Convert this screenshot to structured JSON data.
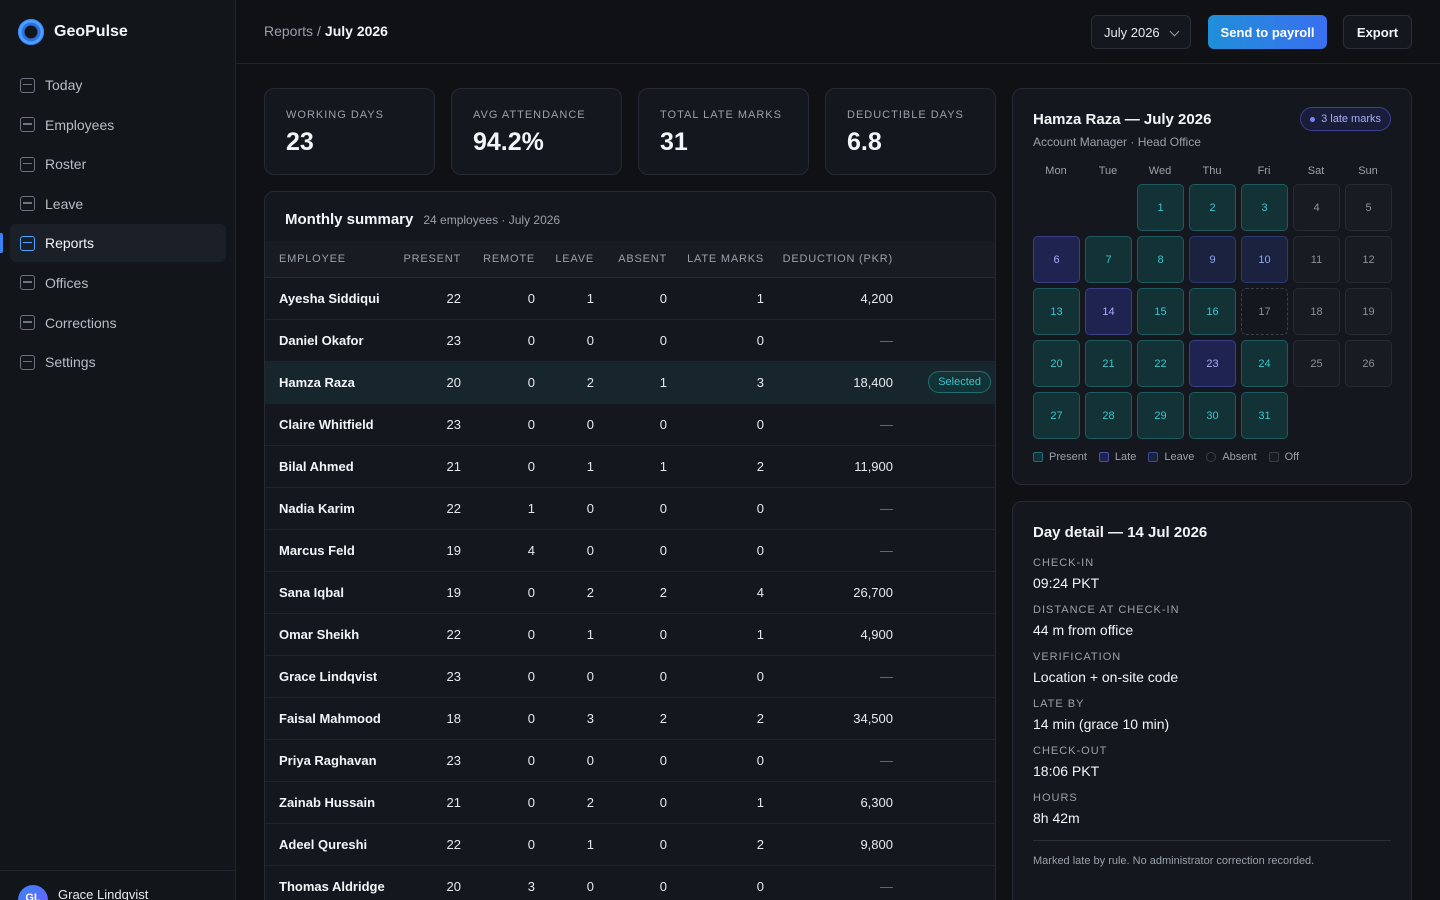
{
  "brand": {
    "name": "GeoPulse"
  },
  "nav": [
    {
      "label": "Today",
      "active": false
    },
    {
      "label": "Employees",
      "active": false
    },
    {
      "label": "Roster",
      "active": false
    },
    {
      "label": "Leave",
      "active": false
    },
    {
      "label": "Reports",
      "active": true
    },
    {
      "label": "Offices",
      "active": false
    },
    {
      "label": "Corrections",
      "active": false
    },
    {
      "label": "Settings",
      "active": false
    }
  ],
  "user": {
    "initials": "GL",
    "name": "Grace Lindqvist"
  },
  "breadcrumb": {
    "parent": "Reports",
    "separator": "/",
    "current": "July 2026"
  },
  "toolbar": {
    "month": "July 2026",
    "send_label": "Send to payroll",
    "export_label": "Export"
  },
  "stats": [
    {
      "label": "Working days",
      "value": "23"
    },
    {
      "label": "Avg attendance",
      "value": "94.2%"
    },
    {
      "label": "Total late marks",
      "value": "31"
    },
    {
      "label": "Deductible days",
      "value": "6.8"
    }
  ],
  "summary": {
    "title": "Monthly summary",
    "subtitle": "24 employees · July 2026",
    "columns": [
      "Employee",
      "Present",
      "Remote",
      "Leave",
      "Absent",
      "Late marks",
      "Deduction (PKR)"
    ],
    "selected_label": "Selected",
    "rows": [
      {
        "name": "Ayesha Siddiqui",
        "present": "22",
        "remote": "0",
        "leave": "1",
        "absent": "0",
        "late": "1",
        "deduction": "4,200",
        "selected": false
      },
      {
        "name": "Daniel Okafor",
        "present": "23",
        "remote": "0",
        "leave": "0",
        "absent": "0",
        "late": "0",
        "deduction": "—",
        "selected": false
      },
      {
        "name": "Hamza Raza",
        "present": "20",
        "remote": "0",
        "leave": "2",
        "absent": "1",
        "late": "3",
        "deduction": "18,400",
        "selected": true
      },
      {
        "name": "Claire Whitfield",
        "present": "23",
        "remote": "0",
        "leave": "0",
        "absent": "0",
        "late": "0",
        "deduction": "—",
        "selected": false
      },
      {
        "name": "Bilal Ahmed",
        "present": "21",
        "remote": "0",
        "leave": "1",
        "absent": "1",
        "late": "2",
        "deduction": "11,900",
        "selected": false
      },
      {
        "name": "Nadia Karim",
        "present": "22",
        "remote": "1",
        "leave": "0",
        "absent": "0",
        "late": "0",
        "deduction": "—",
        "selected": false
      },
      {
        "name": "Marcus Feld",
        "present": "19",
        "remote": "4",
        "leave": "0",
        "absent": "0",
        "late": "0",
        "deduction": "—",
        "selected": false
      },
      {
        "name": "Sana Iqbal",
        "present": "19",
        "remote": "0",
        "leave": "2",
        "absent": "2",
        "late": "4",
        "deduction": "26,700",
        "selected": false
      },
      {
        "name": "Omar Sheikh",
        "present": "22",
        "remote": "0",
        "leave": "1",
        "absent": "0",
        "late": "1",
        "deduction": "4,900",
        "selected": false
      },
      {
        "name": "Grace Lindqvist",
        "present": "23",
        "remote": "0",
        "leave": "0",
        "absent": "0",
        "late": "0",
        "deduction": "—",
        "selected": false
      },
      {
        "name": "Faisal Mahmood",
        "present": "18",
        "remote": "0",
        "leave": "3",
        "absent": "2",
        "late": "2",
        "deduction": "34,500",
        "selected": false
      },
      {
        "name": "Priya Raghavan",
        "present": "23",
        "remote": "0",
        "leave": "0",
        "absent": "0",
        "late": "0",
        "deduction": "—",
        "selected": false
      },
      {
        "name": "Zainab Hussain",
        "present": "21",
        "remote": "0",
        "leave": "2",
        "absent": "0",
        "late": "1",
        "deduction": "6,300",
        "selected": false
      },
      {
        "name": "Adeel Qureshi",
        "present": "22",
        "remote": "0",
        "leave": "1",
        "absent": "0",
        "late": "2",
        "deduction": "9,800",
        "selected": false
      },
      {
        "name": "Thomas Aldridge",
        "present": "20",
        "remote": "3",
        "leave": "0",
        "absent": "0",
        "late": "0",
        "deduction": "—",
        "selected": false
      }
    ]
  },
  "calendar": {
    "title": "Hamza Raza — July 2026",
    "subtitle": "Account Manager · Head Office",
    "late_badge": "3 late marks",
    "weekdays": [
      "Mon",
      "Tue",
      "Wed",
      "Thu",
      "Fri",
      "Sat",
      "Sun"
    ],
    "first_weekday_offset": 2,
    "days": [
      {
        "d": "1",
        "s": "present"
      },
      {
        "d": "2",
        "s": "present"
      },
      {
        "d": "3",
        "s": "present"
      },
      {
        "d": "4",
        "s": "off"
      },
      {
        "d": "5",
        "s": "off"
      },
      {
        "d": "6",
        "s": "late"
      },
      {
        "d": "7",
        "s": "present"
      },
      {
        "d": "8",
        "s": "present"
      },
      {
        "d": "9",
        "s": "leave"
      },
      {
        "d": "10",
        "s": "leave"
      },
      {
        "d": "11",
        "s": "off"
      },
      {
        "d": "12",
        "s": "off"
      },
      {
        "d": "13",
        "s": "present"
      },
      {
        "d": "14",
        "s": "late"
      },
      {
        "d": "15",
        "s": "present"
      },
      {
        "d": "16",
        "s": "present"
      },
      {
        "d": "17",
        "s": "future"
      },
      {
        "d": "18",
        "s": "off"
      },
      {
        "d": "19",
        "s": "off"
      },
      {
        "d": "20",
        "s": "present"
      },
      {
        "d": "21",
        "s": "present"
      },
      {
        "d": "22",
        "s": "present"
      },
      {
        "d": "23",
        "s": "late"
      },
      {
        "d": "24",
        "s": "present"
      },
      {
        "d": "25",
        "s": "off"
      },
      {
        "d": "26",
        "s": "off"
      },
      {
        "d": "27",
        "s": "present"
      },
      {
        "d": "28",
        "s": "present"
      },
      {
        "d": "29",
        "s": "present"
      },
      {
        "d": "30",
        "s": "present"
      },
      {
        "d": "31",
        "s": "present"
      }
    ],
    "legend": [
      {
        "key": "present",
        "label": "Present"
      },
      {
        "key": "late",
        "label": "Late"
      },
      {
        "key": "leave",
        "label": "Leave"
      },
      {
        "key": "absent",
        "label": "Absent"
      },
      {
        "key": "off",
        "label": "Off"
      }
    ]
  },
  "detail": {
    "title": "Day detail — 14 Jul 2026",
    "fields": [
      {
        "label": "Check-in",
        "value": "09:24 PKT"
      },
      {
        "label": "Distance at check-in",
        "value": "44 m from office"
      },
      {
        "label": "Verification",
        "value": "Location + on-site code"
      },
      {
        "label": "Late by",
        "value": "14 min (grace 10 min)"
      },
      {
        "label": "Check-out",
        "value": "18:06 PKT"
      },
      {
        "label": "Hours",
        "value": "8h 42m"
      }
    ],
    "note": "Marked late by rule. No administrator correction recorded."
  },
  "colors": {
    "accent": "#3b82f6",
    "present": "#3bc6cc",
    "late": "#a7adf5",
    "leave": "#8fa6f0"
  }
}
